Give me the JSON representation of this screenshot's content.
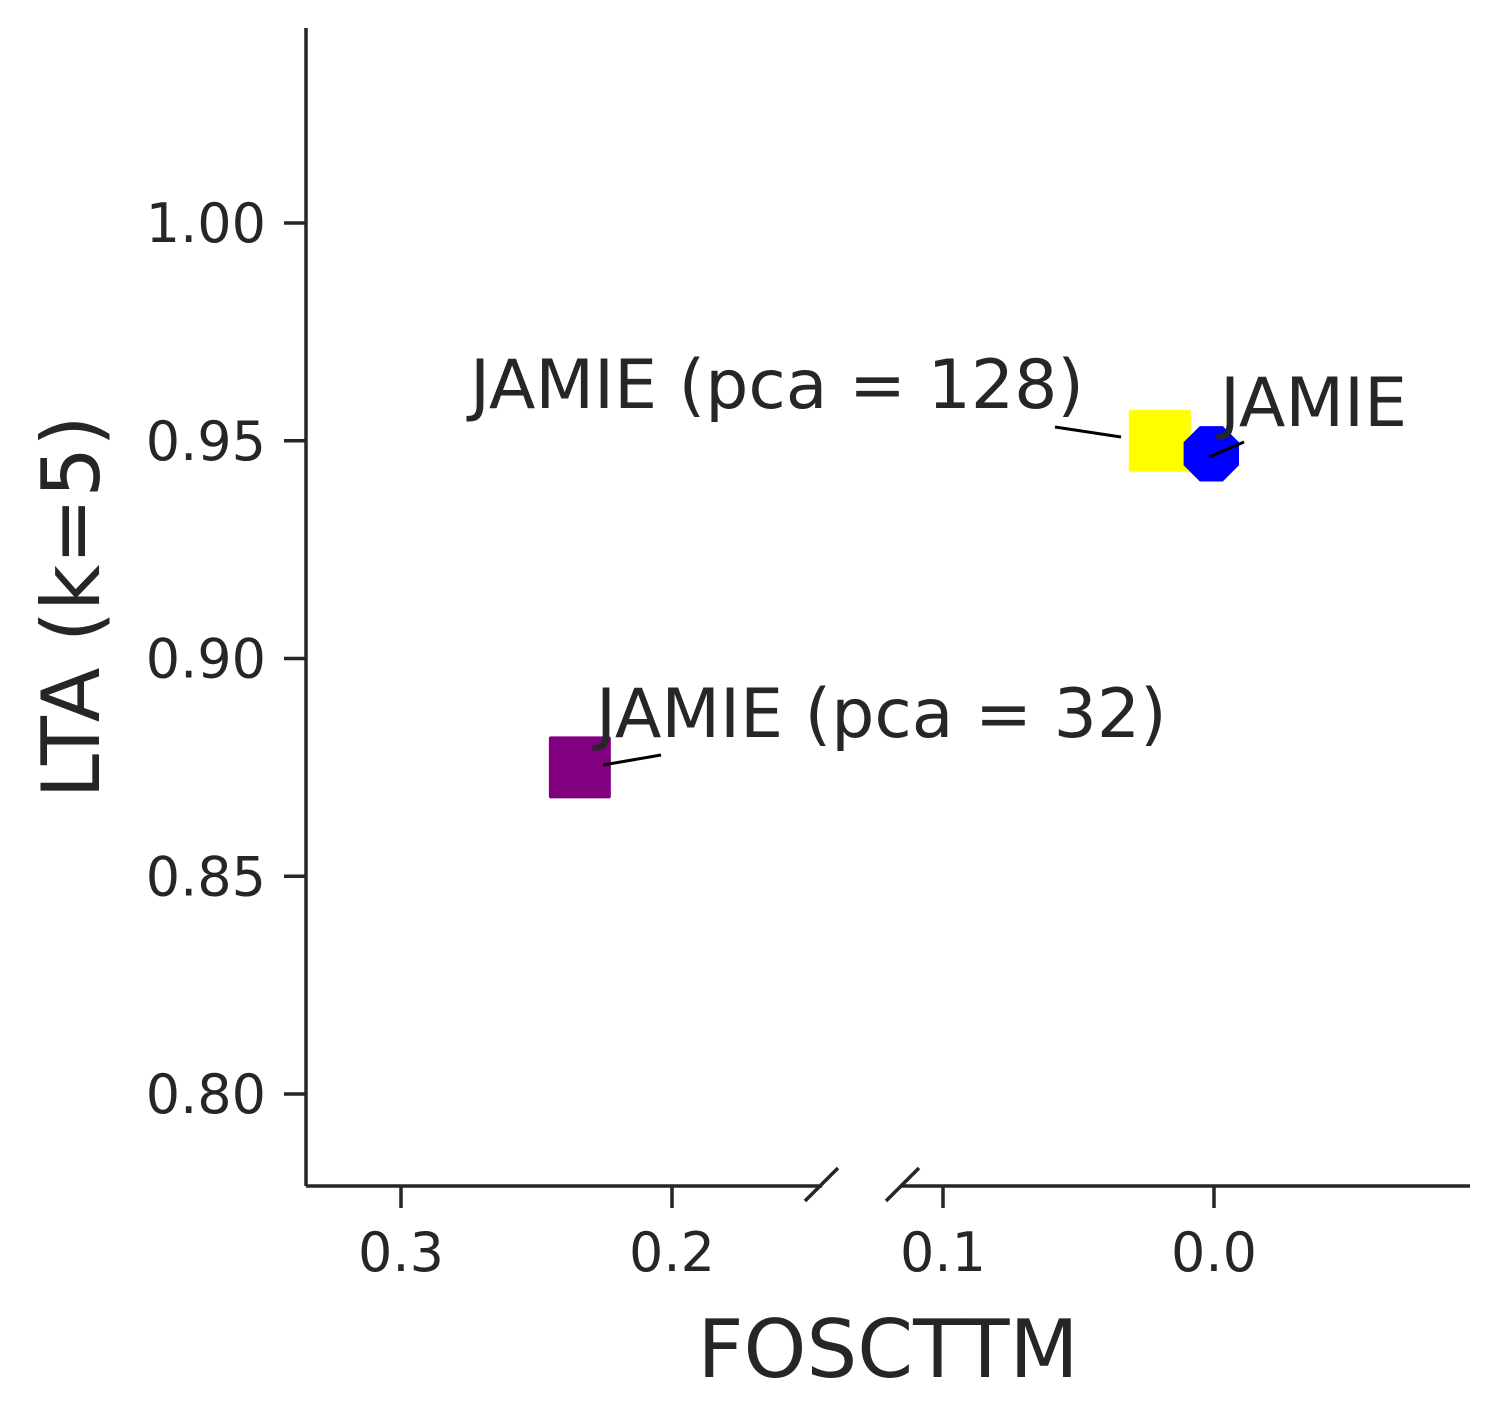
{
  "chart_data": {
    "type": "scatter",
    "xlabel": "FOSCTTM",
    "ylabel": "LTA (k=5)",
    "x_inverted": true,
    "x_axis_broken": true,
    "xlim": [
      0.33,
      -0.095
    ],
    "ylim": [
      0.778,
      1.044
    ],
    "xticks": [
      {
        "value": 0.3,
        "label": "0.3"
      },
      {
        "value": 0.2,
        "label": "0.2"
      },
      {
        "value": 0.1,
        "label": "0.1"
      },
      {
        "value": 0.0,
        "label": "0.0"
      }
    ],
    "yticks": [
      {
        "value": 0.8,
        "label": "0.80"
      },
      {
        "value": 0.85,
        "label": "0.85"
      },
      {
        "value": 0.9,
        "label": "0.90"
      },
      {
        "value": 0.95,
        "label": "0.95"
      },
      {
        "value": 1.0,
        "label": "1.00"
      }
    ],
    "points": [
      {
        "label": "JAMIE (pca = 128)",
        "x": 0.02,
        "y": 0.95,
        "color": "#ffff00",
        "marker": "square"
      },
      {
        "label": "JAMIE",
        "x": 0.001,
        "y": 0.947,
        "color": "#0000ff",
        "marker": "octagon"
      },
      {
        "label": "JAMIE (pca = 32)",
        "x": 0.234,
        "y": 0.875,
        "color": "#800080",
        "marker": "square"
      }
    ],
    "grid": false,
    "legend": "none"
  }
}
